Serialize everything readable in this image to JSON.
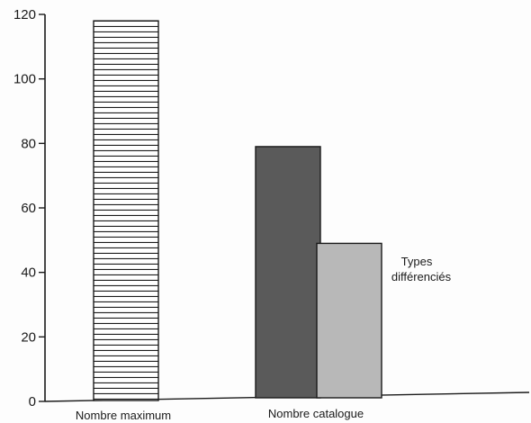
{
  "chart_data": {
    "type": "bar",
    "categories": [
      "Nombre maximum",
      "Nombre catalogue"
    ],
    "series": [
      {
        "values": [
          118,
          79
        ],
        "fill": "#ffffff",
        "pattern": "horizontal-stripes"
      },
      {
        "values": [
          null,
          49
        ],
        "fill": "#b8b8b8",
        "pattern": "solid"
      }
    ],
    "second_bar_fill": "#5a5a5a",
    "ylim": [
      0,
      120
    ],
    "yticks": [
      "0",
      "20",
      "40",
      "60",
      "80",
      "100",
      "120"
    ],
    "annotations": [
      {
        "text_line1": "Types",
        "text_line2": "différenciés"
      }
    ],
    "xlabel": "",
    "ylabel": "",
    "grid": false,
    "legend": "none"
  }
}
